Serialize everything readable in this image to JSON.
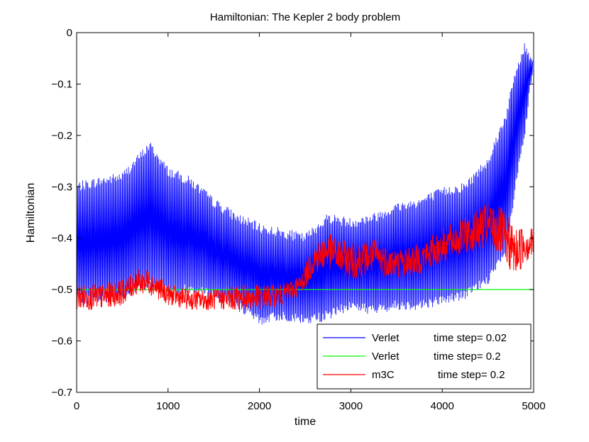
{
  "chart_data": {
    "type": "line",
    "title": "Hamiltonian: The Kepler 2 body problem",
    "xlabel": "time",
    "ylabel": "Hamiltonian",
    "xlim": [
      0,
      5000
    ],
    "ylim": [
      -0.7,
      0
    ],
    "xticks": [
      0,
      1000,
      2000,
      3000,
      4000,
      5000
    ],
    "xtick_labels": [
      "0",
      "1000",
      "2000",
      "3000",
      "4000",
      "5000"
    ],
    "yticks": [
      0,
      -0.1,
      -0.2,
      -0.3,
      -0.4,
      -0.5,
      -0.6,
      -0.7
    ],
    "ytick_labels": [
      "0",
      "−0.1",
      "−0.2",
      "−0.3",
      "−0.4",
      "−0.5",
      "−0.6",
      "−0.7"
    ],
    "grid": false,
    "legend_position": "bottom-right",
    "series": [
      {
        "name": "Verlet    time step= 0.02",
        "color": "#0000ff",
        "style": "oscillating",
        "x": [
          0,
          250,
          500,
          650,
          800,
          1000,
          1250,
          1500,
          1750,
          2000,
          2250,
          2500,
          2750,
          3000,
          3250,
          3500,
          3750,
          4000,
          4250,
          4500,
          4700,
          4800,
          4900,
          5000
        ],
        "upper": [
          -0.3,
          -0.29,
          -0.28,
          -0.25,
          -0.22,
          -0.27,
          -0.29,
          -0.33,
          -0.36,
          -0.38,
          -0.39,
          -0.4,
          -0.36,
          -0.37,
          -0.36,
          -0.34,
          -0.33,
          -0.31,
          -0.3,
          -0.25,
          -0.16,
          -0.08,
          -0.03,
          -0.055
        ],
        "lower": [
          -0.52,
          -0.52,
          -0.51,
          -0.5,
          -0.49,
          -0.5,
          -0.5,
          -0.51,
          -0.53,
          -0.56,
          -0.55,
          -0.56,
          -0.55,
          -0.53,
          -0.54,
          -0.53,
          -0.53,
          -0.52,
          -0.51,
          -0.48,
          -0.43,
          -0.3,
          -0.2,
          -0.055
        ]
      },
      {
        "name": "Verlet    time step= 0.2",
        "color": "#00ff00",
        "style": "line",
        "x": [
          0,
          5000
        ],
        "y": [
          -0.5,
          -0.5
        ]
      },
      {
        "name": "m3C       time step= 0.2",
        "color": "#ff0000",
        "style": "band",
        "x": [
          0,
          250,
          500,
          650,
          800,
          1000,
          1250,
          1500,
          1750,
          2000,
          2250,
          2450,
          2600,
          2750,
          3000,
          3250,
          3500,
          3750,
          4000,
          4250,
          4500,
          4650,
          4800,
          4900,
          5000
        ],
        "upper": [
          -0.49,
          -0.49,
          -0.48,
          -0.46,
          -0.46,
          -0.49,
          -0.5,
          -0.5,
          -0.49,
          -0.49,
          -0.49,
          -0.47,
          -0.41,
          -0.39,
          -0.41,
          -0.4,
          -0.42,
          -0.41,
          -0.38,
          -0.36,
          -0.33,
          -0.34,
          -0.38,
          -0.37,
          -0.38
        ],
        "lower": [
          -0.54,
          -0.54,
          -0.53,
          -0.51,
          -0.51,
          -0.53,
          -0.54,
          -0.54,
          -0.54,
          -0.54,
          -0.53,
          -0.51,
          -0.47,
          -0.46,
          -0.48,
          -0.47,
          -0.48,
          -0.47,
          -0.45,
          -0.43,
          -0.42,
          -0.44,
          -0.48,
          -0.45,
          -0.44
        ]
      }
    ],
    "legend": [
      {
        "label_a": "Verlet",
        "label_b": "time step= 0.02",
        "color": "#0000ff"
      },
      {
        "label_a": "Verlet",
        "label_b": "time step= 0.2",
        "color": "#00ff00"
      },
      {
        "label_a": "m3C",
        "label_b": "time step= 0.2",
        "color": "#ff0000"
      }
    ]
  }
}
